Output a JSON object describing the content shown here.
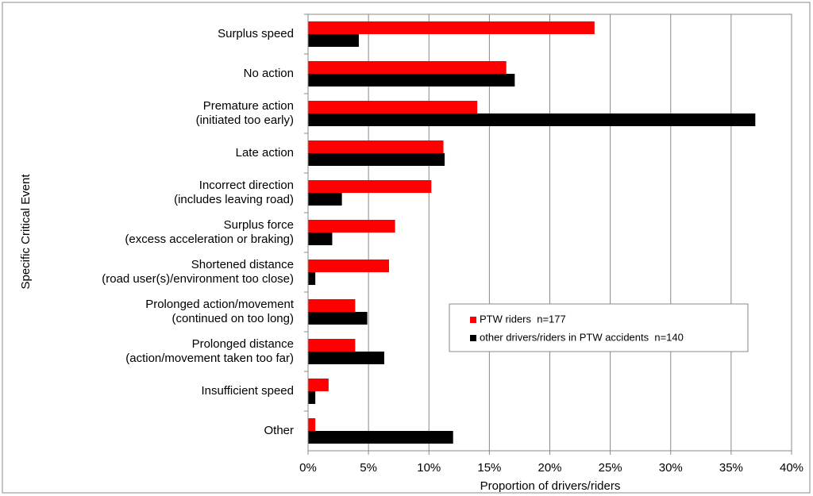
{
  "chart_data": {
    "type": "hbar",
    "x_label": "Proportion of drivers/riders",
    "y_label": "Specific Critical Event",
    "categories": [
      "Surplus speed",
      "No action",
      "Premature action\n(initiated too early)",
      "Late action",
      "Incorrect direction\n(includes leaving road)",
      "Surplus force\n(excess acceleration or braking)",
      "Shortened distance\n(road user(s)/environment too close)",
      "Prolonged action/movement\n(continued on too long)",
      "Prolonged distance\n(action/movement taken too far)",
      "Insufficient speed",
      "Other"
    ],
    "series": [
      {
        "name": "PTW riders  n=177",
        "color": "#ff0000",
        "values": [
          23.7,
          16.4,
          14.0,
          11.2,
          10.2,
          7.2,
          6.7,
          3.9,
          3.9,
          1.7,
          0.6
        ]
      },
      {
        "name": "other drivers/riders in PTW accidents  n=140",
        "color": "#000000",
        "values": [
          4.2,
          17.1,
          37.0,
          11.3,
          2.8,
          2.0,
          0.6,
          4.9,
          6.3,
          0.6,
          12.0
        ]
      }
    ],
    "xlim": [
      0,
      40
    ],
    "xticks": [
      {
        "value": 0,
        "label": "0%"
      },
      {
        "value": 5,
        "label": "5%"
      },
      {
        "value": 10,
        "label": "10%"
      },
      {
        "value": 15,
        "label": "15%"
      },
      {
        "value": 20,
        "label": "20%"
      },
      {
        "value": 25,
        "label": "25%"
      },
      {
        "value": 30,
        "label": "30%"
      },
      {
        "value": 35,
        "label": "35%"
      },
      {
        "value": 40,
        "label": "40%"
      }
    ],
    "grid": true
  }
}
